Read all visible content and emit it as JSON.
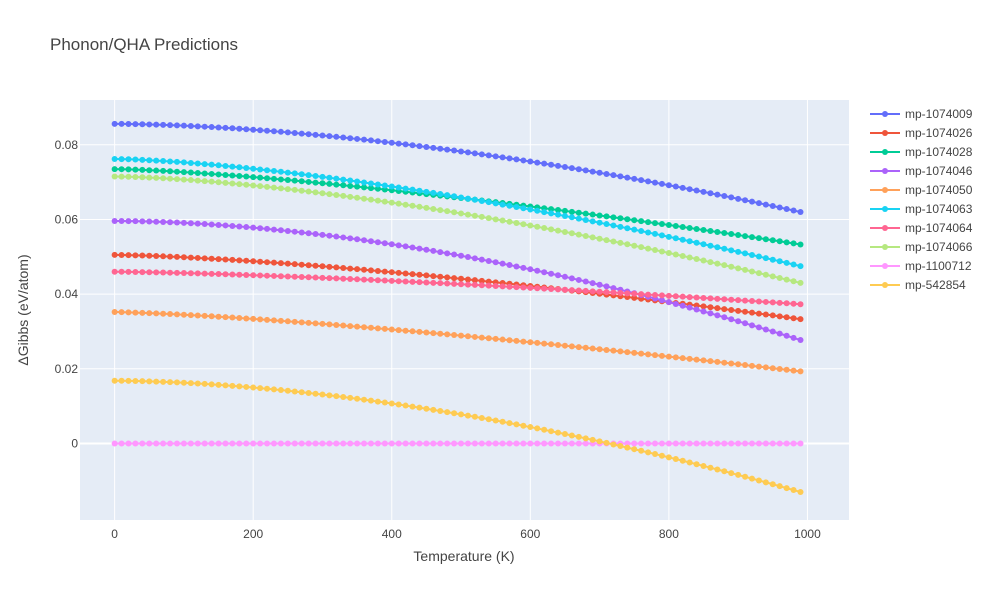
{
  "chart_data": {
    "type": "line",
    "title": "Phonon/QHA Predictions",
    "xlabel": "Temperature (K)",
    "ylabel": "ΔGibbs (eV/atom)",
    "xlim": [
      -50,
      1060
    ],
    "ylim": [
      -0.0205,
      0.092
    ],
    "xticks": [
      0,
      200,
      400,
      600,
      800,
      1000
    ],
    "xtick_labels": [
      "0",
      "200",
      "400",
      "600",
      "800",
      "1000"
    ],
    "yticks": [
      0,
      0.02,
      0.04,
      0.06,
      0.08
    ],
    "ytick_labels": [
      "0",
      "0.02",
      "0.04",
      "0.06",
      "0.08"
    ],
    "grid": true,
    "legend_position": "right",
    "x": {
      "start": 0,
      "stop": 990,
      "step": 10
    },
    "series": [
      {
        "name": "mp-1074009",
        "color": "#636efa",
        "v0": 0.0856,
        "v1": 0.062,
        "p": 1.7
      },
      {
        "name": "mp-1074026",
        "color": "#EF553B",
        "v0": 0.0505,
        "v1": 0.0333,
        "p": 1.45
      },
      {
        "name": "mp-1074028",
        "color": "#00cc96",
        "v0": 0.0735,
        "v1": 0.0533,
        "p": 1.4
      },
      {
        "name": "mp-1074046",
        "color": "#ab63fa",
        "v0": 0.0596,
        "v1": 0.0277,
        "p": 1.8
      },
      {
        "name": "mp-1074050",
        "color": "#FFA15A",
        "v0": 0.0352,
        "v1": 0.0193,
        "p": 1.35
      },
      {
        "name": "mp-1074063",
        "color": "#19d3f3",
        "v0": 0.0762,
        "v1": 0.0475,
        "p": 1.5
      },
      {
        "name": "mp-1074064",
        "color": "#FF6692",
        "v0": 0.046,
        "v1": 0.0373,
        "p": 1.4
      },
      {
        "name": "mp-1074066",
        "color": "#B6E880",
        "v0": 0.0715,
        "v1": 0.043,
        "p": 1.55
      },
      {
        "name": "mp-1100712",
        "color": "#FF97FF",
        "v0": 0.0,
        "v1": 0.0,
        "p": 1.0
      },
      {
        "name": "mp-542854",
        "color": "#FECB52",
        "v0": 0.0168,
        "v1": -0.013,
        "p": 1.75
      }
    ]
  }
}
